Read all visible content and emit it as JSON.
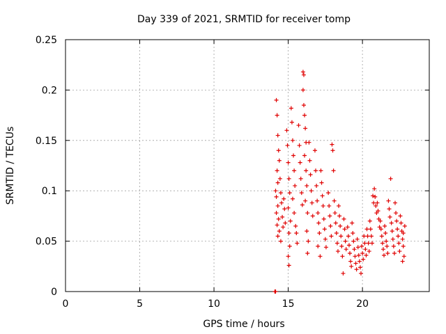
{
  "chart_data": {
    "type": "scatter",
    "title": "Day 339 of 2021, SRMTID for receiver tomp",
    "xlabel": "GPS time / hours",
    "ylabel": "SRMTID / TECUs",
    "xlim": [
      0,
      24.5
    ],
    "ylim": [
      0,
      0.25
    ],
    "xticks": [
      0,
      5,
      10,
      15,
      20
    ],
    "xtick_labels": [
      "0",
      "5",
      "10",
      "15",
      "20"
    ],
    "yticks": [
      0,
      0.05,
      0.1,
      0.15,
      0.2,
      0.25
    ],
    "ytick_labels": [
      "0",
      "0.05",
      "0.1",
      "0.15",
      "0.2",
      "0.25"
    ],
    "grid": true,
    "marker": "+",
    "color": "#e00000",
    "series": [
      {
        "name": "SRMTID",
        "points": [
          [
            14.1,
            0.0
          ],
          [
            14.15,
            0.0
          ],
          [
            14.2,
            0.19
          ],
          [
            14.25,
            0.175
          ],
          [
            14.3,
            0.155
          ],
          [
            14.35,
            0.14
          ],
          [
            14.4,
            0.13
          ],
          [
            14.25,
            0.12
          ],
          [
            14.3,
            0.108
          ],
          [
            14.15,
            0.1
          ],
          [
            14.2,
            0.094
          ],
          [
            14.3,
            0.085
          ],
          [
            14.2,
            0.078
          ],
          [
            14.35,
            0.072
          ],
          [
            14.25,
            0.066
          ],
          [
            14.4,
            0.06
          ],
          [
            14.3,
            0.055
          ],
          [
            14.45,
            0.112
          ],
          [
            14.5,
            0.098
          ],
          [
            14.55,
            0.088
          ],
          [
            14.6,
            0.074
          ],
          [
            14.65,
            0.064
          ],
          [
            14.5,
            0.05
          ],
          [
            14.7,
            0.092
          ],
          [
            14.75,
            0.082
          ],
          [
            14.8,
            0.068
          ],
          [
            14.9,
            0.16
          ],
          [
            14.95,
            0.145
          ],
          [
            15.0,
            0.128
          ],
          [
            15.05,
            0.112
          ],
          [
            15.1,
            0.098
          ],
          [
            15.0,
            0.083
          ],
          [
            15.15,
            0.07
          ],
          [
            15.05,
            0.058
          ],
          [
            15.1,
            0.045
          ],
          [
            15.0,
            0.035
          ],
          [
            15.05,
            0.026
          ],
          [
            15.2,
            0.182
          ],
          [
            15.25,
            0.168
          ],
          [
            15.3,
            0.15
          ],
          [
            15.35,
            0.135
          ],
          [
            15.4,
            0.12
          ],
          [
            15.45,
            0.105
          ],
          [
            15.3,
            0.092
          ],
          [
            15.4,
            0.078
          ],
          [
            15.5,
            0.065
          ],
          [
            15.55,
            0.058
          ],
          [
            15.6,
            0.048
          ],
          [
            15.7,
            0.165
          ],
          [
            15.75,
            0.145
          ],
          [
            15.8,
            0.128
          ],
          [
            15.85,
            0.112
          ],
          [
            15.9,
            0.098
          ],
          [
            15.95,
            0.086
          ],
          [
            16.0,
            0.218
          ],
          [
            16.05,
            0.215
          ],
          [
            16.0,
            0.2
          ],
          [
            16.05,
            0.185
          ],
          [
            16.1,
            0.175
          ],
          [
            16.15,
            0.162
          ],
          [
            16.2,
            0.148
          ],
          [
            16.1,
            0.135
          ],
          [
            16.2,
            0.12
          ],
          [
            16.25,
            0.105
          ],
          [
            16.15,
            0.09
          ],
          [
            16.3,
            0.078
          ],
          [
            16.25,
            0.06
          ],
          [
            16.35,
            0.05
          ],
          [
            16.3,
            0.038
          ],
          [
            16.4,
            0.148
          ],
          [
            16.45,
            0.13
          ],
          [
            16.5,
            0.116
          ],
          [
            16.55,
            0.1
          ],
          [
            16.6,
            0.088
          ],
          [
            16.65,
            0.075
          ],
          [
            16.8,
            0.14
          ],
          [
            16.85,
            0.12
          ],
          [
            16.9,
            0.105
          ],
          [
            16.95,
            0.09
          ],
          [
            17.0,
            0.078
          ],
          [
            17.05,
            0.068
          ],
          [
            17.1,
            0.058
          ],
          [
            17.0,
            0.045
          ],
          [
            17.15,
            0.035
          ],
          [
            17.2,
            0.12
          ],
          [
            17.25,
            0.108
          ],
          [
            17.3,
            0.095
          ],
          [
            17.35,
            0.085
          ],
          [
            17.4,
            0.072
          ],
          [
            17.45,
            0.062
          ],
          [
            17.5,
            0.052
          ],
          [
            17.55,
            0.044
          ],
          [
            17.7,
            0.098
          ],
          [
            17.75,
            0.085
          ],
          [
            17.8,
            0.075
          ],
          [
            17.85,
            0.065
          ],
          [
            17.9,
            0.055
          ],
          [
            17.95,
            0.146
          ],
          [
            18.0,
            0.14
          ],
          [
            18.05,
            0.12
          ],
          [
            18.1,
            0.09
          ],
          [
            18.15,
            0.078
          ],
          [
            18.2,
            0.068
          ],
          [
            18.25,
            0.058
          ],
          [
            18.3,
            0.048
          ],
          [
            18.35,
            0.04
          ],
          [
            18.4,
            0.085
          ],
          [
            18.45,
            0.075
          ],
          [
            18.5,
            0.065
          ],
          [
            18.55,
            0.055
          ],
          [
            18.6,
            0.045
          ],
          [
            18.65,
            0.035
          ],
          [
            18.7,
            0.018
          ],
          [
            18.75,
            0.072
          ],
          [
            18.8,
            0.062
          ],
          [
            18.85,
            0.05
          ],
          [
            18.9,
            0.042
          ],
          [
            19.0,
            0.064
          ],
          [
            19.05,
            0.055
          ],
          [
            19.1,
            0.046
          ],
          [
            19.15,
            0.038
          ],
          [
            19.2,
            0.03
          ],
          [
            19.25,
            0.025
          ],
          [
            19.3,
            0.068
          ],
          [
            19.35,
            0.058
          ],
          [
            19.4,
            0.05
          ],
          [
            19.45,
            0.042
          ],
          [
            19.5,
            0.035
          ],
          [
            19.55,
            0.028
          ],
          [
            19.6,
            0.022
          ],
          [
            19.65,
            0.052
          ],
          [
            19.7,
            0.044
          ],
          [
            19.75,
            0.036
          ],
          [
            19.8,
            0.03
          ],
          [
            19.85,
            0.024
          ],
          [
            19.9,
            0.018
          ],
          [
            19.95,
            0.045
          ],
          [
            20.0,
            0.038
          ],
          [
            20.05,
            0.032
          ],
          [
            20.1,
            0.055
          ],
          [
            20.15,
            0.048
          ],
          [
            20.2,
            0.042
          ],
          [
            20.25,
            0.036
          ],
          [
            20.3,
            0.062
          ],
          [
            20.35,
            0.055
          ],
          [
            20.4,
            0.048
          ],
          [
            20.45,
            0.04
          ],
          [
            20.5,
            0.07
          ],
          [
            20.55,
            0.062
          ],
          [
            20.6,
            0.055
          ],
          [
            20.65,
            0.048
          ],
          [
            20.7,
            0.095
          ],
          [
            20.75,
            0.088
          ],
          [
            20.8,
            0.102
          ],
          [
            20.85,
            0.094
          ],
          [
            20.9,
            0.085
          ],
          [
            20.95,
            0.078
          ],
          [
            21.0,
            0.088
          ],
          [
            21.05,
            0.08
          ],
          [
            21.1,
            0.072
          ],
          [
            21.15,
            0.064
          ],
          [
            21.2,
            0.07
          ],
          [
            21.25,
            0.062
          ],
          [
            21.3,
            0.055
          ],
          [
            21.35,
            0.048
          ],
          [
            21.4,
            0.042
          ],
          [
            21.45,
            0.036
          ],
          [
            21.5,
            0.065
          ],
          [
            21.55,
            0.058
          ],
          [
            21.6,
            0.05
          ],
          [
            21.65,
            0.045
          ],
          [
            21.7,
            0.038
          ],
          [
            21.75,
            0.09
          ],
          [
            21.8,
            0.082
          ],
          [
            21.85,
            0.074
          ],
          [
            21.9,
            0.112
          ],
          [
            21.95,
            0.068
          ],
          [
            22.0,
            0.06
          ],
          [
            22.05,
            0.052
          ],
          [
            22.1,
            0.045
          ],
          [
            22.15,
            0.038
          ],
          [
            22.2,
            0.088
          ],
          [
            22.25,
            0.078
          ],
          [
            22.3,
            0.07
          ],
          [
            22.35,
            0.062
          ],
          [
            22.4,
            0.055
          ],
          [
            22.45,
            0.048
          ],
          [
            22.5,
            0.04
          ],
          [
            22.55,
            0.075
          ],
          [
            22.6,
            0.068
          ],
          [
            22.65,
            0.06
          ],
          [
            22.7,
            0.052
          ],
          [
            22.75,
            0.045
          ],
          [
            22.8,
            0.035
          ],
          [
            22.85,
            0.065
          ],
          [
            22.75,
            0.058
          ],
          [
            22.7,
            0.03
          ]
        ]
      }
    ]
  }
}
